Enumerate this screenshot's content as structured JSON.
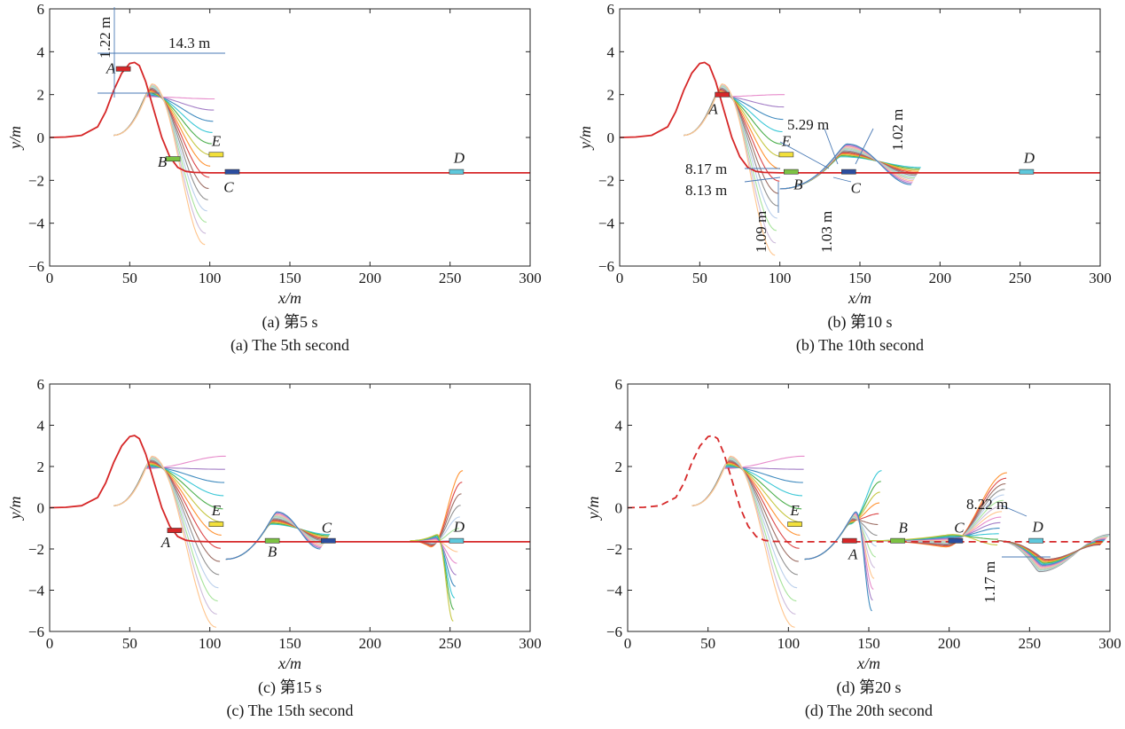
{
  "chart_data": [
    {
      "type": "line",
      "xlabel": "x/m",
      "ylabel": "y/m",
      "xlim": [
        0,
        300
      ],
      "ylim": [
        -6,
        6
      ],
      "xticks": [
        "0",
        "50",
        "100",
        "150",
        "200",
        "250",
        "300"
      ],
      "yticks": [
        "6",
        "4",
        "2",
        "0",
        "−2",
        "−4",
        "−6"
      ],
      "caption_cn": "(a) 第5 s",
      "caption_en": "(a) The 5th second",
      "reference_path": {
        "color": "#d62728",
        "style": "solid",
        "x": [
          0,
          10,
          20,
          30,
          35,
          40,
          45,
          50,
          53,
          56,
          60,
          65,
          70,
          75,
          80,
          85,
          90,
          100,
          300
        ],
        "y": [
          0,
          0.02,
          0.1,
          0.5,
          1.2,
          2.2,
          3.0,
          3.45,
          3.5,
          3.35,
          2.6,
          1.3,
          0.0,
          -0.9,
          -1.4,
          -1.58,
          -1.63,
          -1.65,
          -1.65
        ]
      },
      "vehicles": [
        {
          "label": "A",
          "x": 46,
          "y": 3.2,
          "color": "#d62728"
        },
        {
          "label": "B",
          "x": 77,
          "y": -1.0,
          "color": "#7cc243"
        },
        {
          "label": "E",
          "x": 104,
          "y": -0.8,
          "color": "#f2e03a"
        },
        {
          "label": "C",
          "x": 114,
          "y": -1.6,
          "color": "#2c4ea0"
        },
        {
          "label": "D",
          "x": 254,
          "y": -1.6,
          "color": "#5ec8dc"
        }
      ],
      "fans": [
        {
          "x0": 40,
          "y0": 0.1,
          "peak_x": 62,
          "peak_y": 2.2,
          "tail_x": 103,
          "tail_min": -5.0,
          "tail_max": 1.8
        }
      ],
      "annotations": [
        "1.22 m",
        "14.3 m"
      ]
    },
    {
      "type": "line",
      "xlabel": "x/m",
      "ylabel": "y/m",
      "xlim": [
        0,
        300
      ],
      "ylim": [
        -6,
        6
      ],
      "xticks": [
        "0",
        "50",
        "100",
        "150",
        "200",
        "250",
        "300"
      ],
      "yticks": [
        "6",
        "4",
        "2",
        "0",
        "−2",
        "−4",
        "−6"
      ],
      "caption_cn": "(b) 第10 s",
      "caption_en": "(b) The 10th second",
      "reference_path": {
        "color": "#d62728",
        "style": "solid",
        "x": [
          0,
          10,
          20,
          30,
          35,
          40,
          45,
          50,
          53,
          56,
          60,
          65,
          70,
          75,
          80,
          85,
          90,
          100,
          300
        ],
        "y": [
          0,
          0.02,
          0.1,
          0.5,
          1.2,
          2.2,
          3.0,
          3.45,
          3.5,
          3.35,
          2.6,
          1.3,
          0.0,
          -0.9,
          -1.4,
          -1.58,
          -1.63,
          -1.65,
          -1.65
        ]
      },
      "vehicles": [
        {
          "label": "A",
          "x": 64,
          "y": 2.0,
          "color": "#d62728"
        },
        {
          "label": "E",
          "x": 104,
          "y": -0.8,
          "color": "#f2e03a"
        },
        {
          "label": "B",
          "x": 107,
          "y": -1.6,
          "color": "#7cc243"
        },
        {
          "label": "C",
          "x": 143,
          "y": -1.6,
          "color": "#2c4ea0"
        },
        {
          "label": "D",
          "x": 254,
          "y": -1.6,
          "color": "#5ec8dc"
        }
      ],
      "fans": [
        {
          "x0": 40,
          "y0": 0.1,
          "peak_x": 62,
          "peak_y": 2.2,
          "tail_x": 103,
          "tail_min": -5.5,
          "tail_max": 2.0
        },
        {
          "x0": 100,
          "y0": -2.4,
          "peak_x": 140,
          "peak_y": -0.6,
          "tail_x": 188,
          "tail_min": -2.2,
          "tail_max": -1.4
        }
      ],
      "annotations": [
        "5.29 m",
        "1.02 m",
        "8.17 m",
        "8.13 m",
        "1.09 m",
        "1.03 m"
      ]
    },
    {
      "type": "line",
      "xlabel": "x/m",
      "ylabel": "y/m",
      "xlim": [
        0,
        300
      ],
      "ylim": [
        -6,
        6
      ],
      "xticks": [
        "0",
        "50",
        "100",
        "150",
        "200",
        "250",
        "300"
      ],
      "yticks": [
        "6",
        "4",
        "2",
        "0",
        "−2",
        "−4",
        "−6"
      ],
      "caption_cn": "(c) 第15 s",
      "caption_en": "(c) The 15th second",
      "reference_path": {
        "color": "#d62728",
        "style": "solid",
        "x": [
          0,
          10,
          20,
          30,
          35,
          40,
          45,
          50,
          53,
          56,
          60,
          65,
          70,
          75,
          80,
          85,
          90,
          100,
          300
        ],
        "y": [
          0,
          0.02,
          0.1,
          0.5,
          1.2,
          2.2,
          3.0,
          3.45,
          3.5,
          3.35,
          2.6,
          1.3,
          0.0,
          -0.9,
          -1.4,
          -1.58,
          -1.63,
          -1.65,
          -1.65
        ]
      },
      "vehicles": [
        {
          "label": "A",
          "x": 78,
          "y": -1.1,
          "color": "#d62728"
        },
        {
          "label": "E",
          "x": 104,
          "y": -0.8,
          "color": "#f2e03a"
        },
        {
          "label": "B",
          "x": 139,
          "y": -1.6,
          "color": "#7cc243"
        },
        {
          "label": "C",
          "x": 174,
          "y": -1.6,
          "color": "#2c4ea0"
        },
        {
          "label": "D",
          "x": 254,
          "y": -1.6,
          "color": "#5ec8dc"
        }
      ],
      "fans": [
        {
          "x0": 40,
          "y0": 0.1,
          "peak_x": 62,
          "peak_y": 2.2,
          "tail_x": 110,
          "tail_min": -5.8,
          "tail_max": 2.5
        },
        {
          "x0": 110,
          "y0": -2.5,
          "peak_x": 140,
          "peak_y": -0.5,
          "tail_x": 175,
          "tail_min": -2.0,
          "tail_max": -1.3
        },
        {
          "x0": 225,
          "y0": -1.6,
          "peak_x": 240,
          "peak_y": -1.6,
          "tail_x": 258,
          "tail_min": -5.5,
          "tail_max": 1.8
        }
      ],
      "annotations": []
    },
    {
      "type": "line",
      "xlabel": "x/m",
      "ylabel": "y/m",
      "xlim": [
        0,
        300
      ],
      "ylim": [
        -6,
        6
      ],
      "xticks": [
        "0",
        "50",
        "100",
        "150",
        "200",
        "250",
        "300"
      ],
      "yticks": [
        "6",
        "4",
        "2",
        "0",
        "−2",
        "−4",
        "−6"
      ],
      "caption_cn": "(d) 第20 s",
      "caption_en": "(d) The 20th second",
      "reference_path": {
        "color": "#d62728",
        "style": "dashed",
        "x": [
          0,
          10,
          20,
          30,
          35,
          40,
          45,
          50,
          53,
          56,
          60,
          65,
          70,
          75,
          80,
          85,
          90,
          100,
          300
        ],
        "y": [
          0,
          0.02,
          0.1,
          0.5,
          1.2,
          2.2,
          3.0,
          3.45,
          3.5,
          3.35,
          2.6,
          1.3,
          0.0,
          -0.9,
          -1.4,
          -1.58,
          -1.63,
          -1.65,
          -1.65
        ]
      },
      "vehicles": [
        {
          "label": "E",
          "x": 104,
          "y": -0.8,
          "color": "#f2e03a"
        },
        {
          "label": "A",
          "x": 138,
          "y": -1.6,
          "color": "#d62728"
        },
        {
          "label": "B",
          "x": 168,
          "y": -1.6,
          "color": "#7cc243"
        },
        {
          "label": "C",
          "x": 204,
          "y": -1.6,
          "color": "#2c4ea0"
        },
        {
          "label": "D",
          "x": 254,
          "y": -1.6,
          "color": "#5ec8dc"
        }
      ],
      "fans": [
        {
          "x0": 40,
          "y0": 0.1,
          "peak_x": 62,
          "peak_y": 2.2,
          "tail_x": 110,
          "tail_min": -5.8,
          "tail_max": 2.5
        },
        {
          "x0": 110,
          "y0": -2.5,
          "peak_x": 140,
          "peak_y": -0.5,
          "tail_x": 158,
          "tail_min": -5.0,
          "tail_max": 1.8
        },
        {
          "x0": 150,
          "y0": -1.6,
          "peak_x": 200,
          "peak_y": -1.6,
          "tail_x": 236,
          "tail_min": -1.8,
          "tail_max": 1.7
        },
        {
          "x0": 230,
          "y0": -1.6,
          "peak_x": 258,
          "peak_y": -2.8,
          "tail_x": 300,
          "tail_min": -1.8,
          "tail_max": -1.3
        }
      ],
      "annotations": [
        "8.22 m",
        "1.17 m"
      ]
    }
  ],
  "palette": [
    "#e377c2",
    "#9467bd",
    "#1f77b4",
    "#17becf",
    "#2ca02c",
    "#bcbd22",
    "#ff7f0e",
    "#d62728",
    "#8c564b",
    "#7f7f7f",
    "#aec7e8",
    "#98df8a",
    "#c5b0d5",
    "#ffbb78"
  ]
}
